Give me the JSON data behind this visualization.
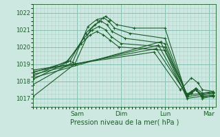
{
  "xlabel": "Pression niveau de la mer( hPa )",
  "ylim": [
    1016.5,
    1022.5
  ],
  "yticks": [
    1017,
    1018,
    1019,
    1020,
    1021,
    1022
  ],
  "xlim": [
    0,
    4.15
  ],
  "day_labels": [
    "Sam",
    "Dim",
    "Lun",
    "Mar"
  ],
  "day_positions": [
    1.0,
    2.0,
    3.0,
    4.0
  ],
  "background_color": "#cde8e0",
  "grid_minor_color": "#aad4ca",
  "grid_major_color": "#88bfb3",
  "line_color": "#1a5c28",
  "series": [
    {
      "x": [
        0.0,
        0.95,
        1.3,
        1.5,
        1.65,
        1.75,
        1.9,
        2.3,
        3.0,
        3.5,
        3.6,
        3.7,
        3.85,
        4.1
      ],
      "y": [
        1017.1,
        1019.0,
        1021.0,
        1021.5,
        1021.8,
        1021.6,
        1021.3,
        1021.1,
        1021.1,
        1017.1,
        1017.3,
        1017.5,
        1017.2,
        1017.3
      ]
    },
    {
      "x": [
        0.0,
        0.9,
        1.25,
        1.45,
        1.6,
        1.72,
        1.85,
        2.2,
        3.0,
        3.5,
        3.6,
        3.7,
        3.85,
        4.1
      ],
      "y": [
        1017.8,
        1019.1,
        1021.2,
        1021.6,
        1021.7,
        1021.5,
        1021.1,
        1020.8,
        1020.5,
        1017.2,
        1017.4,
        1017.6,
        1017.3,
        1017.4
      ]
    },
    {
      "x": [
        0.0,
        0.85,
        1.2,
        1.4,
        1.55,
        1.68,
        1.8,
        2.1,
        3.0,
        3.5,
        3.6,
        3.7,
        3.85,
        4.1
      ],
      "y": [
        1018.1,
        1019.2,
        1020.8,
        1021.3,
        1021.5,
        1021.3,
        1020.9,
        1020.5,
        1020.2,
        1017.15,
        1017.3,
        1017.5,
        1017.1,
        1017.2
      ]
    },
    {
      "x": [
        0.0,
        0.8,
        1.15,
        1.35,
        1.5,
        1.65,
        1.78,
        2.0,
        3.0,
        3.5,
        3.6,
        3.7,
        3.85,
        4.1
      ],
      "y": [
        1018.3,
        1019.2,
        1020.5,
        1021.0,
        1021.2,
        1021.0,
        1020.6,
        1020.2,
        1020.0,
        1017.2,
        1017.35,
        1017.5,
        1017.05,
        1017.1
      ]
    },
    {
      "x": [
        0.0,
        0.75,
        1.1,
        1.3,
        1.45,
        1.6,
        1.75,
        1.95,
        3.0,
        3.5,
        3.6,
        3.7,
        3.85,
        4.1
      ],
      "y": [
        1018.5,
        1019.1,
        1020.2,
        1020.7,
        1020.9,
        1020.7,
        1020.4,
        1020.0,
        1019.8,
        1017.25,
        1017.4,
        1017.55,
        1017.0,
        1017.15
      ]
    },
    {
      "x": [
        0.0,
        2.9,
        3.5,
        4.1
      ],
      "y": [
        1018.2,
        1020.3,
        1017.0,
        1017.2
      ]
    },
    {
      "x": [
        0.0,
        2.85,
        3.5,
        4.1
      ],
      "y": [
        1018.4,
        1020.1,
        1017.1,
        1017.3
      ]
    },
    {
      "x": [
        0.0,
        2.8,
        3.5,
        4.1
      ],
      "y": [
        1018.55,
        1019.9,
        1017.2,
        1017.35
      ]
    },
    {
      "x": [
        0.0,
        2.75,
        3.35,
        3.6,
        3.75,
        3.85,
        4.1
      ],
      "y": [
        1018.65,
        1019.7,
        1017.5,
        1018.2,
        1017.9,
        1017.5,
        1017.4
      ]
    }
  ]
}
